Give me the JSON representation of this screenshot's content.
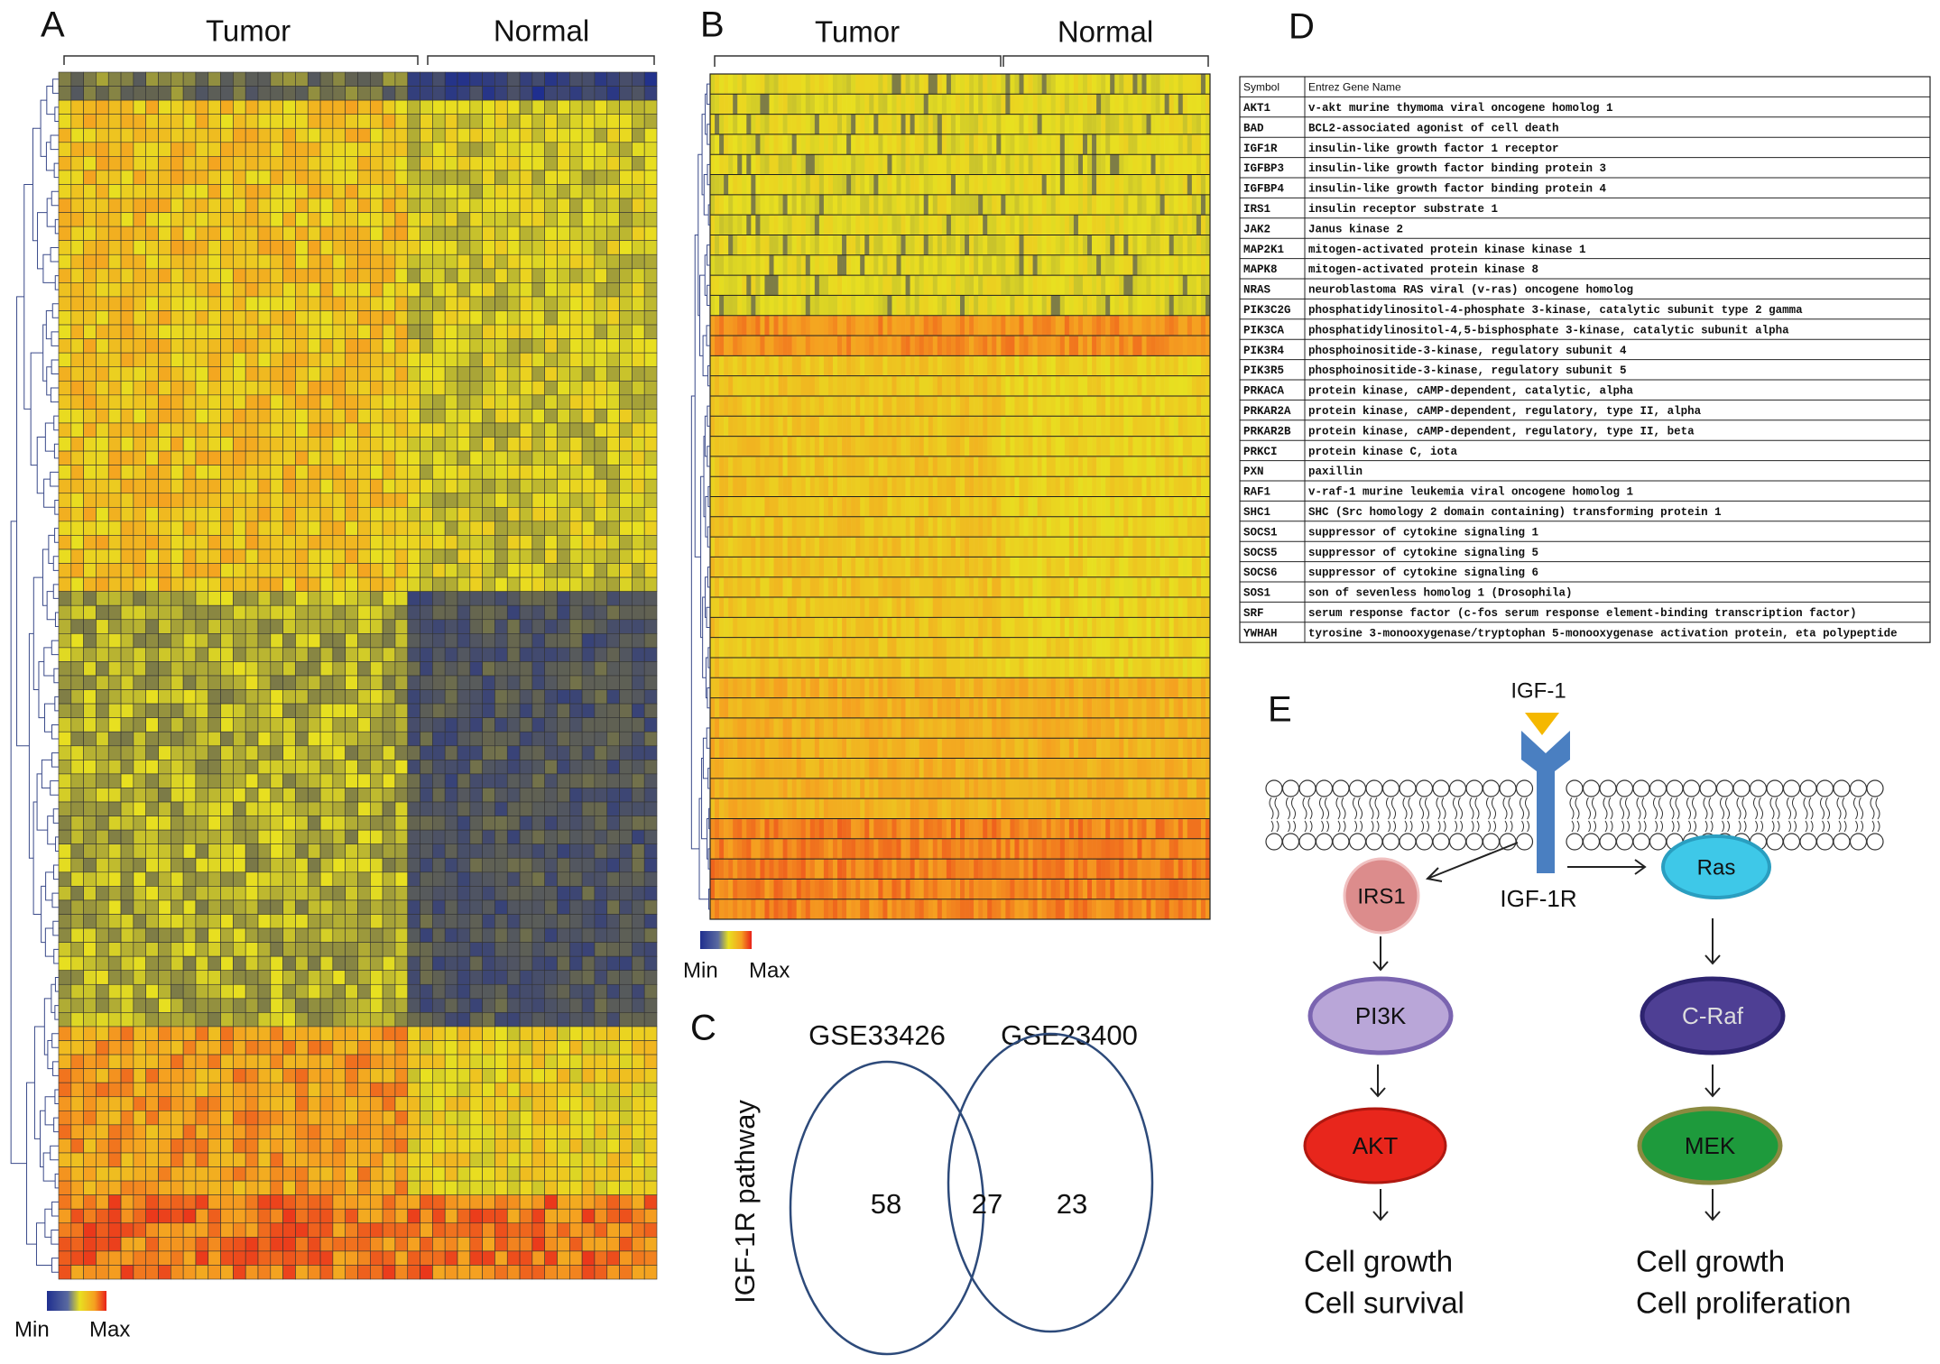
{
  "panels": {
    "A": {
      "label": "A",
      "groups": [
        "Tumor",
        "Normal"
      ],
      "legend": [
        "Min",
        "Max"
      ]
    },
    "B": {
      "label": "B",
      "groups": [
        "Tumor",
        "Normal"
      ],
      "legend": [
        "Min",
        "Max"
      ]
    },
    "C": {
      "label": "C",
      "sets": [
        "GSE33426",
        "GSE23400"
      ],
      "y_label": "IGF-1R pathway",
      "counts": [
        58,
        27,
        23
      ]
    },
    "D": {
      "label": "D",
      "table": {
        "header": [
          "Symbol",
          "Entrez Gene Name"
        ],
        "rows": [
          [
            "AKT1",
            "v-akt murine thymoma viral oncogene homolog 1"
          ],
          [
            "BAD",
            "BCL2-associated agonist of cell death"
          ],
          [
            "IGF1R",
            "insulin-like growth factor 1 receptor"
          ],
          [
            "IGFBP3",
            "insulin-like growth factor binding protein 3"
          ],
          [
            "IGFBP4",
            "insulin-like growth factor binding protein 4"
          ],
          [
            "IRS1",
            "insulin receptor substrate 1"
          ],
          [
            "JAK2",
            "Janus kinase 2"
          ],
          [
            "MAP2K1",
            "mitogen-activated protein kinase kinase 1"
          ],
          [
            "MAPK8",
            "mitogen-activated protein kinase 8"
          ],
          [
            "NRAS",
            "neuroblastoma RAS viral (v-ras) oncogene homolog"
          ],
          [
            "PIK3C2G",
            "phosphatidylinositol-4-phosphate 3-kinase, catalytic subunit type 2 gamma"
          ],
          [
            "PIK3CA",
            "phosphatidylinositol-4,5-bisphosphate 3-kinase, catalytic subunit alpha"
          ],
          [
            "PIK3R4",
            "phosphoinositide-3-kinase, regulatory subunit 4"
          ],
          [
            "PIK3R5",
            "phosphoinositide-3-kinase, regulatory subunit 5"
          ],
          [
            "PRKACA",
            "protein kinase, cAMP-dependent, catalytic, alpha"
          ],
          [
            "PRKAR2A",
            "protein kinase, cAMP-dependent, regulatory, type II, alpha"
          ],
          [
            "PRKAR2B",
            "protein kinase, cAMP-dependent, regulatory, type II, beta"
          ],
          [
            "PRKCI",
            "protein kinase C, iota"
          ],
          [
            "PXN",
            "paxillin"
          ],
          [
            "RAF1",
            "v-raf-1 murine leukemia viral oncogene homolog 1"
          ],
          [
            "SHC1",
            "SHC (Src homology 2 domain containing) transforming protein 1"
          ],
          [
            "SOCS1",
            "suppressor of cytokine signaling 1"
          ],
          [
            "SOCS5",
            "suppressor of cytokine signaling 5"
          ],
          [
            "SOCS6",
            "suppressor of cytokine signaling 6"
          ],
          [
            "SOS1",
            "son of sevenless homolog 1 (Drosophila)"
          ],
          [
            "SRF",
            "serum response factor (c-fos serum response element-binding transcription factor)"
          ],
          [
            "YWHAH",
            "tyrosine 3-monooxygenase/tryptophan 5-monooxygenase activation protein, eta polypeptide"
          ]
        ]
      }
    },
    "E": {
      "label": "E",
      "ligand": "IGF-1",
      "receptor": "IGF-1R",
      "nodes": [
        "IRS1",
        "Ras",
        "PI3K",
        "C-Raf",
        "AKT",
        "MEK"
      ],
      "outcomes_left": [
        "Cell growth",
        "Cell survival"
      ],
      "outcomes_right": [
        "Cell growth",
        "Cell proliferation"
      ]
    }
  }
}
